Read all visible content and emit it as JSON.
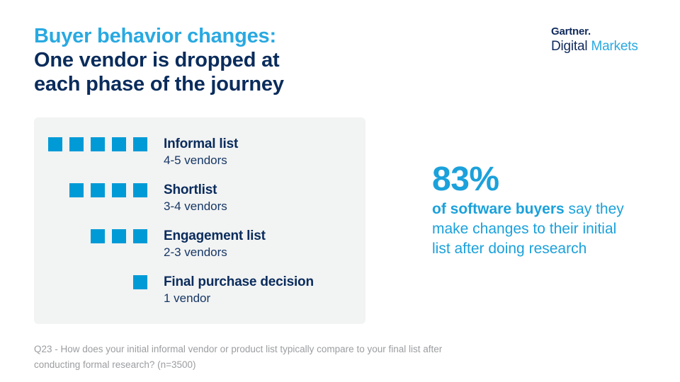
{
  "slide": {
    "title": {
      "line1": "Buyer behavior changes:",
      "line2": "One vendor is dropped at",
      "line3": "each phase of the journey"
    },
    "logo": {
      "brand": "Gartner.",
      "product_dark": "Digital",
      "product_light": "Markets"
    },
    "stat": {
      "value": "83%",
      "bold_text": "of software buyers",
      "rest_text": " say they make changes to their initial list after doing research"
    },
    "footnote": {
      "line1": "Q23 - How does your initial informal vendor or product list typically compare to your final list after",
      "line2": "conducting formal research? (n=3500)"
    },
    "colors": {
      "accent_light_blue": "#29A9E1",
      "stat_blue": "#1BA1DB",
      "square_blue": "#009AD6",
      "navy": "#0A2C5C",
      "panel_bg": "#F2F3F3",
      "footnote_gray": "#9B9DA0"
    }
  },
  "chart_data": {
    "type": "bar",
    "subtype": "pictograph-unit-chart",
    "title": "One vendor is dropped at each phase of the journey",
    "categories": [
      "Informal list",
      "Shortlist",
      "Engagement list",
      "Final purchase decision"
    ],
    "values": [
      5,
      4,
      3,
      1
    ],
    "value_labels": [
      "4-5 vendors",
      "3-4 vendors",
      "2-3 vendors",
      "1 vendor"
    ],
    "unit": "1 square = 1 vendor",
    "orientation": "horizontal",
    "bars_alignment": "right",
    "legend": "none",
    "grid": false
  }
}
